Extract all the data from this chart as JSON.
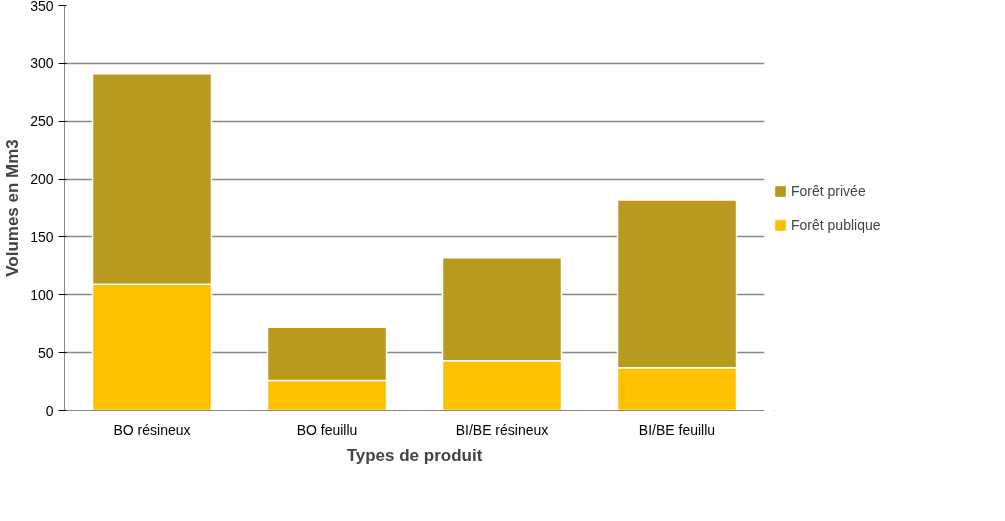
{
  "chart_data": {
    "type": "bar",
    "stacked": true,
    "xlabel": "Types de produit",
    "ylabel": "Volumes en Mm3",
    "categories": [
      "BO résineux",
      "BO feuillu",
      "BI/BE résineux",
      "BI/BE feuillu"
    ],
    "series": [
      {
        "name": "Forêt publique",
        "color": "#ffc000",
        "values": [
          109,
          26,
          43,
          37
        ]
      },
      {
        "name": "Forêt privée",
        "color": "#b89b1e",
        "values": [
          182,
          46,
          89,
          145
        ]
      }
    ],
    "ylim": [
      0,
      350
    ],
    "yticks": [
      0,
      50,
      100,
      150,
      200,
      250,
      300,
      350
    ],
    "grid": "y",
    "legend": "right"
  }
}
